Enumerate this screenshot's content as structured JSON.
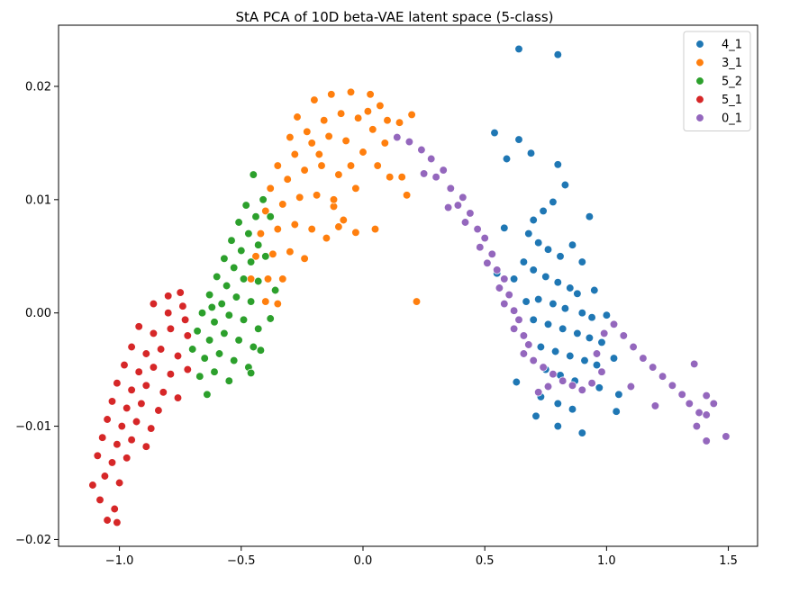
{
  "chart_data": {
    "type": "scatter",
    "title": "StA PCA of 10D beta-VAE latent space (5-class)",
    "xlabel": "",
    "ylabel": "",
    "xlim": [
      -1.25,
      1.62
    ],
    "ylim": [
      -0.0206,
      0.0254
    ],
    "x_ticks": [
      -1.0,
      -0.5,
      0.0,
      0.5,
      1.0,
      1.5
    ],
    "x_tick_labels": [
      "−1.0",
      "−0.5",
      "0.0",
      "0.5",
      "1.0",
      "1.5"
    ],
    "y_ticks": [
      -0.02,
      -0.01,
      0.0,
      0.01,
      0.02
    ],
    "y_tick_labels": [
      "−0.02",
      "−0.01",
      "0.00",
      "0.01",
      "0.02"
    ],
    "grid": false,
    "legend_position": "top-right",
    "series": [
      {
        "name": "4_1",
        "color": "#1f77b4",
        "points": [
          [
            0.64,
            0.0233
          ],
          [
            0.8,
            0.0228
          ],
          [
            0.54,
            0.0159
          ],
          [
            0.64,
            0.0153
          ],
          [
            0.59,
            0.0136
          ],
          [
            0.69,
            0.0141
          ],
          [
            0.8,
            0.0131
          ],
          [
            0.83,
            0.0113
          ],
          [
            0.93,
            0.0085
          ],
          [
            0.78,
            0.0098
          ],
          [
            0.74,
            0.009
          ],
          [
            0.7,
            0.0082
          ],
          [
            0.68,
            0.007
          ],
          [
            0.72,
            0.0062
          ],
          [
            0.76,
            0.0056
          ],
          [
            0.81,
            0.005
          ],
          [
            0.66,
            0.0045
          ],
          [
            0.7,
            0.0038
          ],
          [
            0.75,
            0.0032
          ],
          [
            0.8,
            0.0027
          ],
          [
            0.85,
            0.0022
          ],
          [
            0.88,
            0.0017
          ],
          [
            0.72,
            0.0012
          ],
          [
            0.78,
            0.0008
          ],
          [
            0.83,
            0.0004
          ],
          [
            0.9,
            0.0
          ],
          [
            0.94,
            -0.0004
          ],
          [
            0.7,
            -0.0006
          ],
          [
            0.76,
            -0.001
          ],
          [
            0.82,
            -0.0014
          ],
          [
            0.88,
            -0.0018
          ],
          [
            0.93,
            -0.0022
          ],
          [
            0.98,
            -0.0026
          ],
          [
            0.73,
            -0.003
          ],
          [
            0.79,
            -0.0034
          ],
          [
            0.85,
            -0.0038
          ],
          [
            0.91,
            -0.0042
          ],
          [
            0.96,
            -0.0046
          ],
          [
            0.75,
            -0.005
          ],
          [
            0.81,
            -0.0055
          ],
          [
            0.87,
            -0.006
          ],
          [
            0.97,
            -0.0066
          ],
          [
            0.73,
            -0.0074
          ],
          [
            0.8,
            -0.008
          ],
          [
            0.86,
            -0.0085
          ],
          [
            0.63,
            -0.0061
          ],
          [
            0.71,
            -0.0091
          ],
          [
            0.8,
            -0.01
          ],
          [
            0.9,
            -0.0106
          ],
          [
            1.04,
            -0.0087
          ],
          [
            0.58,
            0.0075
          ],
          [
            0.62,
            0.003
          ],
          [
            0.55,
            0.0035
          ],
          [
            0.67,
            0.001
          ],
          [
            0.86,
            0.006
          ],
          [
            0.9,
            0.0045
          ],
          [
            0.95,
            0.002
          ],
          [
            1.0,
            -0.0002
          ],
          [
            1.03,
            -0.004
          ],
          [
            1.05,
            -0.0072
          ]
        ]
      },
      {
        "name": "3_1",
        "color": "#ff7f0e",
        "points": [
          [
            -0.27,
            0.0173
          ],
          [
            -0.2,
            0.0188
          ],
          [
            -0.13,
            0.0193
          ],
          [
            -0.05,
            0.0195
          ],
          [
            0.03,
            0.0193
          ],
          [
            0.07,
            0.0183
          ],
          [
            0.1,
            0.017
          ],
          [
            0.15,
            0.0168
          ],
          [
            0.2,
            0.0175
          ],
          [
            -0.3,
            0.0155
          ],
          [
            -0.23,
            0.016
          ],
          [
            -0.16,
            0.017
          ],
          [
            -0.09,
            0.0176
          ],
          [
            -0.02,
            0.0172
          ],
          [
            0.04,
            0.0162
          ],
          [
            0.09,
            0.015
          ],
          [
            -0.35,
            0.013
          ],
          [
            -0.28,
            0.014
          ],
          [
            -0.21,
            0.015
          ],
          [
            -0.14,
            0.0156
          ],
          [
            -0.07,
            0.0152
          ],
          [
            0.0,
            0.0142
          ],
          [
            0.06,
            0.013
          ],
          [
            0.11,
            0.012
          ],
          [
            0.16,
            0.012
          ],
          [
            0.18,
            0.0104
          ],
          [
            -0.38,
            0.011
          ],
          [
            -0.31,
            0.0118
          ],
          [
            -0.24,
            0.0126
          ],
          [
            -0.17,
            0.013
          ],
          [
            -0.1,
            0.0122
          ],
          [
            -0.03,
            0.011
          ],
          [
            -0.4,
            0.009
          ],
          [
            -0.33,
            0.0096
          ],
          [
            -0.26,
            0.0102
          ],
          [
            -0.19,
            0.0104
          ],
          [
            -0.12,
            0.0094
          ],
          [
            -0.08,
            0.0082
          ],
          [
            -0.42,
            0.007
          ],
          [
            -0.35,
            0.0074
          ],
          [
            -0.28,
            0.0078
          ],
          [
            -0.21,
            0.0074
          ],
          [
            -0.15,
            0.0066
          ],
          [
            -0.1,
            0.0076
          ],
          [
            -0.03,
            0.0071
          ],
          [
            0.05,
            0.0074
          ],
          [
            -0.44,
            0.005
          ],
          [
            -0.37,
            0.0052
          ],
          [
            -0.3,
            0.0054
          ],
          [
            -0.24,
            0.0048
          ],
          [
            -0.46,
            0.003
          ],
          [
            -0.39,
            0.003
          ],
          [
            -0.33,
            0.003
          ],
          [
            -0.4,
            0.001
          ],
          [
            -0.35,
            0.0008
          ],
          [
            0.22,
            0.001
          ],
          [
            -0.12,
            0.01
          ],
          [
            -0.05,
            0.013
          ],
          [
            0.02,
            0.0178
          ],
          [
            -0.18,
            0.014
          ]
        ]
      },
      {
        "name": "5_2",
        "color": "#2ca02c",
        "points": [
          [
            -0.45,
            0.0122
          ],
          [
            -0.41,
            0.01
          ],
          [
            -0.48,
            0.0095
          ],
          [
            -0.44,
            0.0085
          ],
          [
            -0.51,
            0.008
          ],
          [
            -0.47,
            0.007
          ],
          [
            -0.54,
            0.0064
          ],
          [
            -0.5,
            0.0055
          ],
          [
            -0.43,
            0.006
          ],
          [
            -0.57,
            0.0048
          ],
          [
            -0.53,
            0.004
          ],
          [
            -0.46,
            0.0045
          ],
          [
            -0.4,
            0.005
          ],
          [
            -0.6,
            0.0032
          ],
          [
            -0.56,
            0.0024
          ],
          [
            -0.49,
            0.003
          ],
          [
            -0.43,
            0.0028
          ],
          [
            -0.63,
            0.0016
          ],
          [
            -0.58,
            0.0008
          ],
          [
            -0.52,
            0.0014
          ],
          [
            -0.46,
            0.001
          ],
          [
            -0.66,
            0.0
          ],
          [
            -0.61,
            -0.0008
          ],
          [
            -0.55,
            -0.0002
          ],
          [
            -0.49,
            -0.0006
          ],
          [
            -0.43,
            -0.0014
          ],
          [
            -0.68,
            -0.0016
          ],
          [
            -0.63,
            -0.0024
          ],
          [
            -0.57,
            -0.0018
          ],
          [
            -0.51,
            -0.0024
          ],
          [
            -0.45,
            -0.003
          ],
          [
            -0.7,
            -0.0032
          ],
          [
            -0.65,
            -0.004
          ],
          [
            -0.59,
            -0.0036
          ],
          [
            -0.53,
            -0.0042
          ],
          [
            -0.47,
            -0.0048
          ],
          [
            -0.67,
            -0.0056
          ],
          [
            -0.61,
            -0.0052
          ],
          [
            -0.55,
            -0.006
          ],
          [
            -0.64,
            -0.0072
          ],
          [
            -0.42,
            -0.0033
          ],
          [
            -0.46,
            -0.0053
          ],
          [
            -0.38,
            -0.0005
          ],
          [
            -0.36,
            0.002
          ],
          [
            -0.62,
            0.0005
          ],
          [
            -0.38,
            0.0085
          ]
        ]
      },
      {
        "name": "5_1",
        "color": "#d62728",
        "points": [
          [
            -0.75,
            0.0018
          ],
          [
            -0.8,
            0.0015
          ],
          [
            -0.74,
            0.0006
          ],
          [
            -0.86,
            0.0008
          ],
          [
            -0.8,
            0.0
          ],
          [
            -0.73,
            -0.0006
          ],
          [
            -0.92,
            -0.0012
          ],
          [
            -0.86,
            -0.0018
          ],
          [
            -0.79,
            -0.0014
          ],
          [
            -0.72,
            -0.002
          ],
          [
            -0.95,
            -0.003
          ],
          [
            -0.89,
            -0.0036
          ],
          [
            -0.83,
            -0.0032
          ],
          [
            -0.76,
            -0.0038
          ],
          [
            -0.98,
            -0.0046
          ],
          [
            -0.92,
            -0.0052
          ],
          [
            -0.86,
            -0.0048
          ],
          [
            -0.79,
            -0.0054
          ],
          [
            -1.01,
            -0.0062
          ],
          [
            -0.95,
            -0.0068
          ],
          [
            -0.89,
            -0.0064
          ],
          [
            -0.82,
            -0.007
          ],
          [
            -1.03,
            -0.0078
          ],
          [
            -0.97,
            -0.0084
          ],
          [
            -0.91,
            -0.008
          ],
          [
            -0.84,
            -0.0086
          ],
          [
            -1.05,
            -0.0094
          ],
          [
            -0.99,
            -0.01
          ],
          [
            -0.93,
            -0.0096
          ],
          [
            -0.87,
            -0.0102
          ],
          [
            -1.07,
            -0.011
          ],
          [
            -1.01,
            -0.0116
          ],
          [
            -0.95,
            -0.0112
          ],
          [
            -0.89,
            -0.0118
          ],
          [
            -1.09,
            -0.0126
          ],
          [
            -1.03,
            -0.0132
          ],
          [
            -0.97,
            -0.0128
          ],
          [
            -1.06,
            -0.0144
          ],
          [
            -1.0,
            -0.015
          ],
          [
            -1.11,
            -0.0152
          ],
          [
            -1.08,
            -0.0165
          ],
          [
            -1.05,
            -0.0183
          ],
          [
            -1.01,
            -0.0185
          ],
          [
            -1.02,
            -0.0173
          ],
          [
            -0.76,
            -0.0075
          ],
          [
            -0.72,
            -0.005
          ]
        ]
      },
      {
        "name": "0_1",
        "color": "#9467bd",
        "points": [
          [
            0.14,
            0.0155
          ],
          [
            0.19,
            0.0151
          ],
          [
            0.24,
            0.0144
          ],
          [
            0.28,
            0.0136
          ],
          [
            0.33,
            0.0126
          ],
          [
            0.3,
            0.012
          ],
          [
            0.36,
            0.011
          ],
          [
            0.41,
            0.0102
          ],
          [
            0.39,
            0.0095
          ],
          [
            0.44,
            0.0088
          ],
          [
            0.42,
            0.008
          ],
          [
            0.47,
            0.0074
          ],
          [
            0.5,
            0.0066
          ],
          [
            0.48,
            0.0058
          ],
          [
            0.53,
            0.0052
          ],
          [
            0.51,
            0.0044
          ],
          [
            0.55,
            0.0038
          ],
          [
            0.58,
            0.003
          ],
          [
            0.56,
            0.0022
          ],
          [
            0.6,
            0.0016
          ],
          [
            0.58,
            0.0008
          ],
          [
            0.62,
            0.0002
          ],
          [
            0.64,
            -0.0006
          ],
          [
            0.62,
            -0.0014
          ],
          [
            0.66,
            -0.002
          ],
          [
            0.68,
            -0.0028
          ],
          [
            0.66,
            -0.0036
          ],
          [
            0.7,
            -0.0042
          ],
          [
            0.74,
            -0.0048
          ],
          [
            0.78,
            -0.0054
          ],
          [
            0.82,
            -0.006
          ],
          [
            0.86,
            -0.0064
          ],
          [
            0.9,
            -0.0068
          ],
          [
            0.94,
            -0.0062
          ],
          [
            0.98,
            -0.0052
          ],
          [
            0.96,
            -0.0036
          ],
          [
            0.99,
            -0.0018
          ],
          [
            1.03,
            -0.001
          ],
          [
            1.07,
            -0.002
          ],
          [
            1.11,
            -0.003
          ],
          [
            1.15,
            -0.004
          ],
          [
            1.19,
            -0.0048
          ],
          [
            1.23,
            -0.0056
          ],
          [
            1.27,
            -0.0064
          ],
          [
            1.31,
            -0.0072
          ],
          [
            1.34,
            -0.008
          ],
          [
            1.38,
            -0.0088
          ],
          [
            1.41,
            -0.009
          ],
          [
            1.36,
            -0.0045
          ],
          [
            1.41,
            -0.0073
          ],
          [
            1.44,
            -0.008
          ],
          [
            1.37,
            -0.01
          ],
          [
            1.41,
            -0.0113
          ],
          [
            1.49,
            -0.0109
          ],
          [
            1.2,
            -0.0082
          ],
          [
            1.1,
            -0.0065
          ],
          [
            0.72,
            -0.007
          ],
          [
            0.76,
            -0.0065
          ],
          [
            0.25,
            0.0123
          ],
          [
            0.35,
            0.0093
          ]
        ]
      }
    ]
  }
}
